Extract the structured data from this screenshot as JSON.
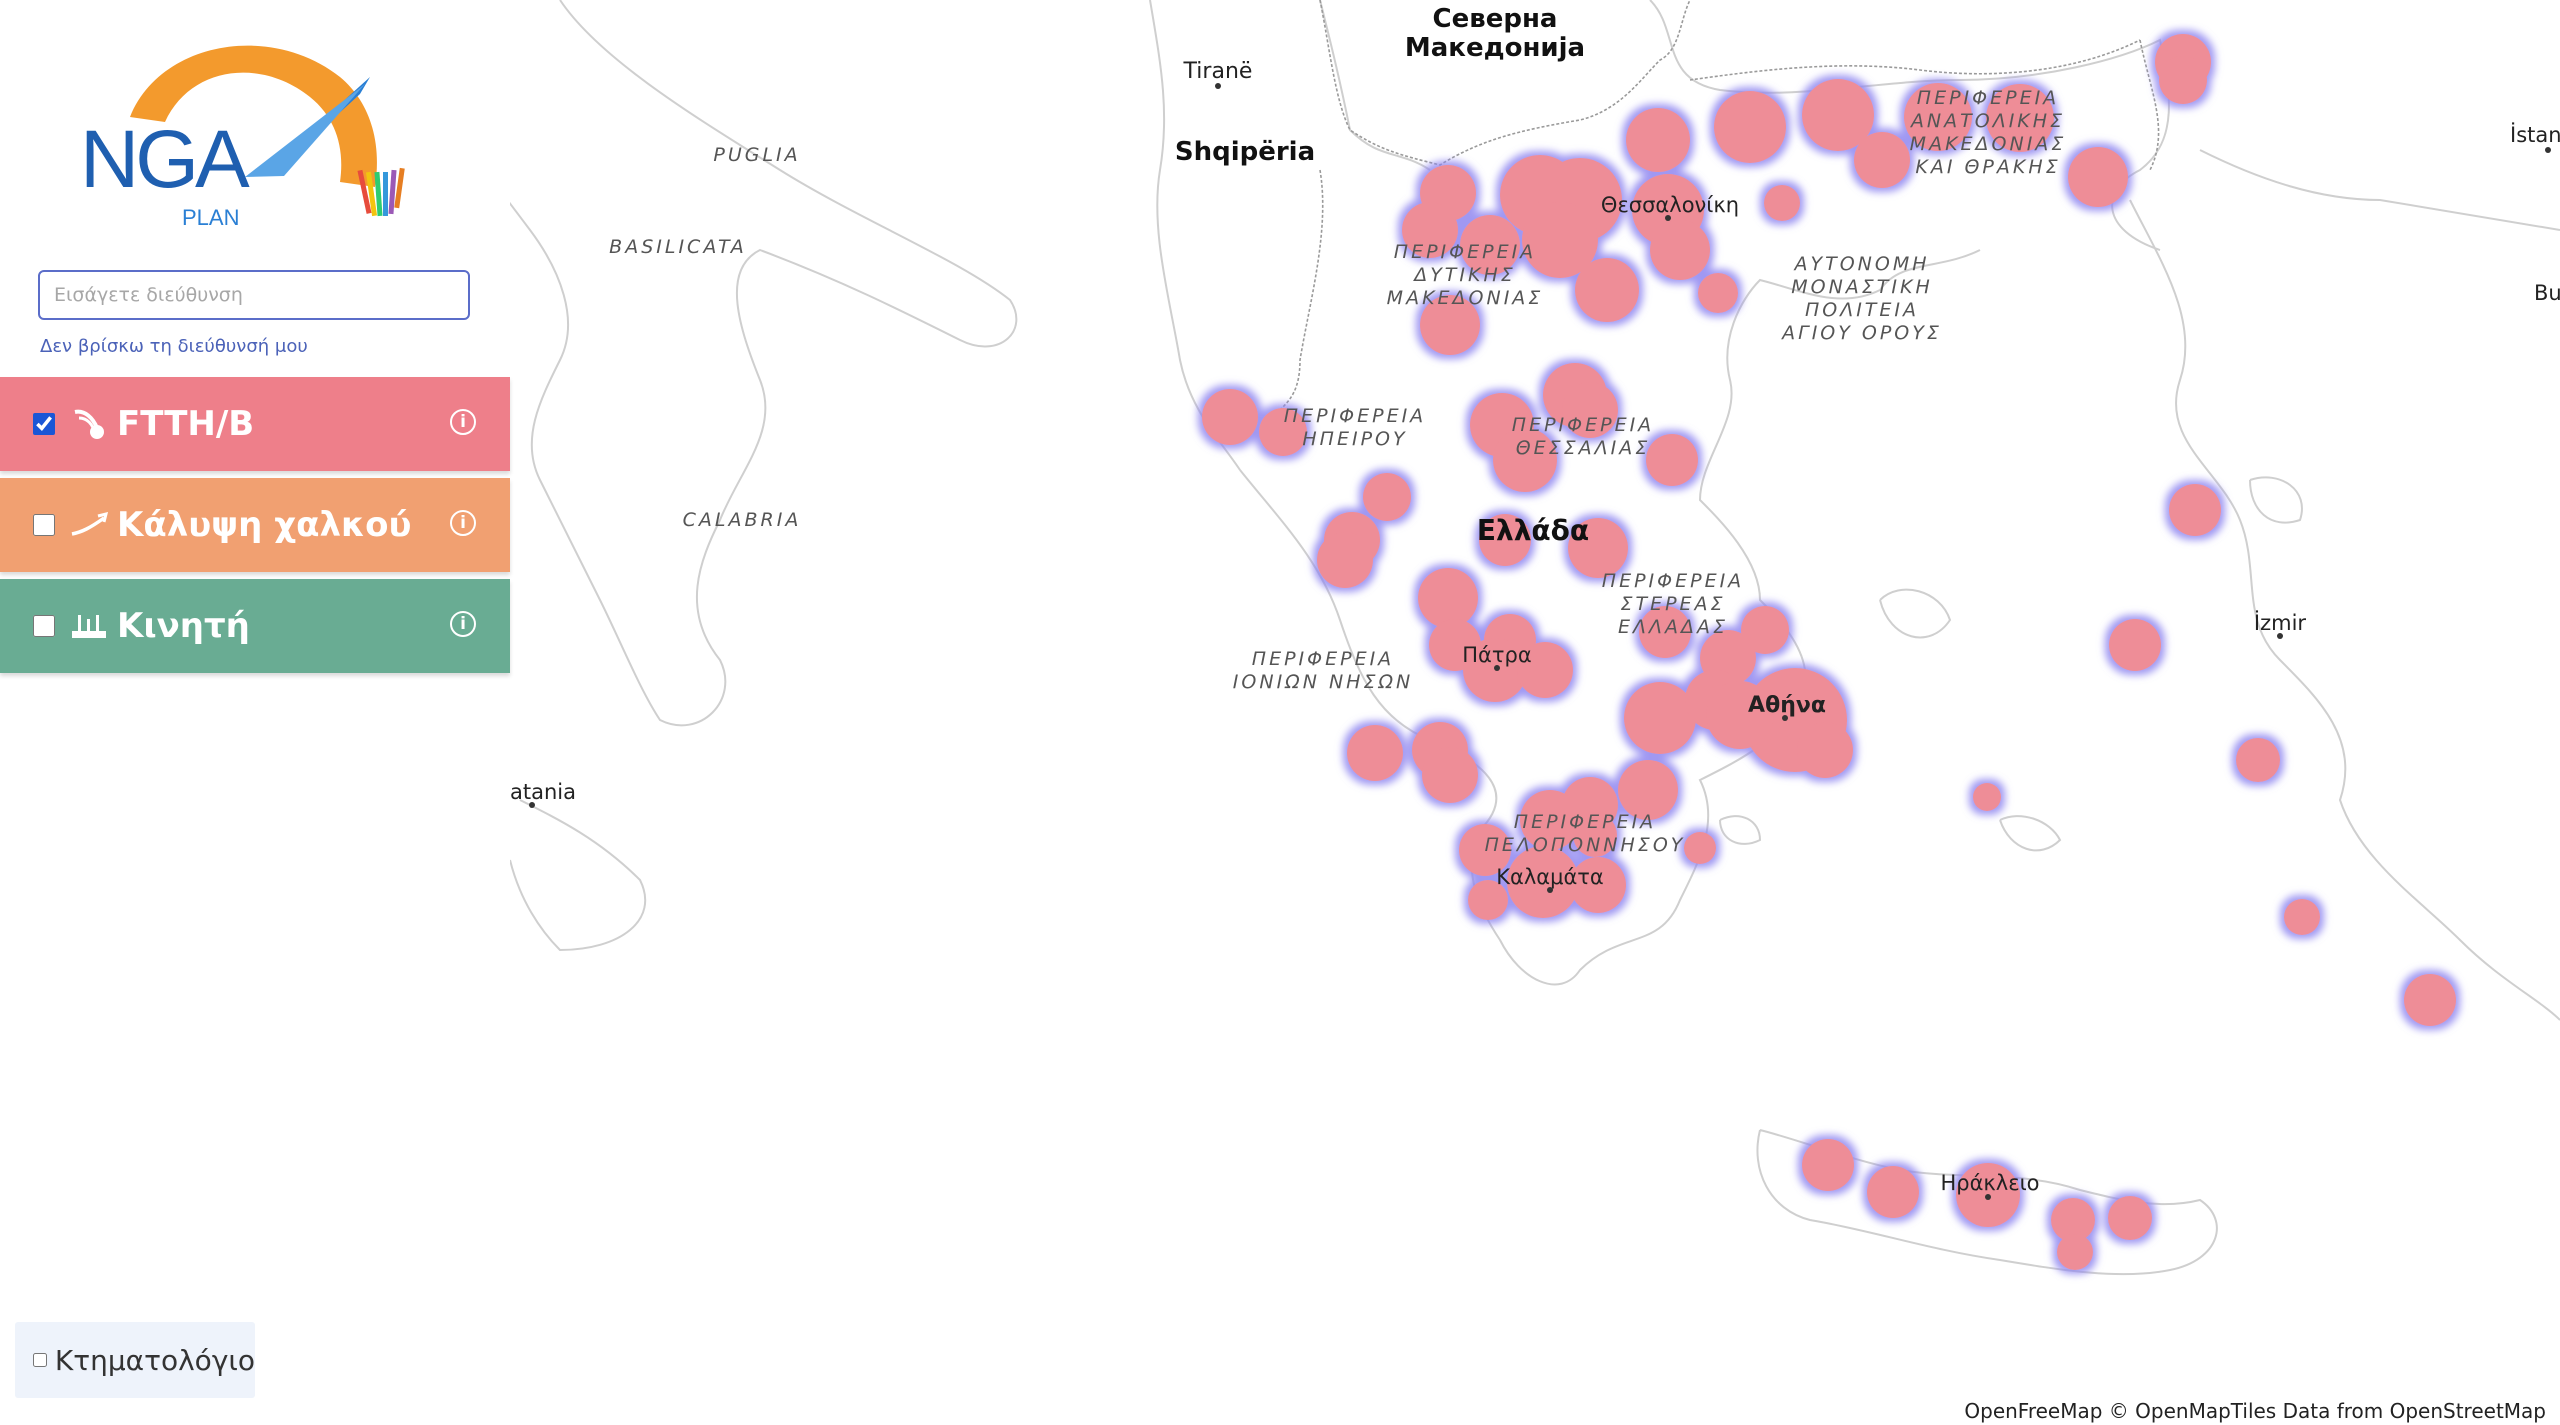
{
  "logo": {
    "text": "NGA",
    "sub": "PLAN",
    "colors": {
      "arc": "#f39a2d",
      "text": "#1f5fb0",
      "blade": "#2a7fd4"
    }
  },
  "search": {
    "placeholder": "Εισάγετε διεύθυνση",
    "value": "",
    "help_link": "Δεν βρίσκω τη διεύθυνσή μου"
  },
  "layers": [
    {
      "label": "FTTH/B",
      "checked": true,
      "color": "#ee7f8a",
      "icon": "fiber-optic-icon",
      "info_icon": "info-icon"
    },
    {
      "label": "Κάλυψη χαλκού",
      "checked": false,
      "color": "#f1a071",
      "icon": "copper-cable-icon",
      "info_icon": "info-icon"
    },
    {
      "label": "Κινητή",
      "checked": false,
      "color": "#69ac93",
      "icon": "antenna-icon",
      "info_icon": "info-icon"
    }
  ],
  "cadastre": {
    "label": "Κτηματολόγιο",
    "checked": false
  },
  "attribution": "OpenFreeMap © OpenMapTiles Data from OpenStreetMap",
  "map": {
    "coverage_color": "#ee8d97",
    "coverage_halo": "#8f86f0",
    "labels": {
      "countries": [
        "Северна",
        "Македонија",
        "Shqipëria",
        "Ελλάδα"
      ],
      "cities": [
        "Tiranë",
        "Θεσσαλονίκη",
        "Πάτρα",
        "Αθήνα",
        "Καλαμάτα",
        "Ηράκλειο",
        "İzmir",
        "İstanb",
        "Bu",
        "atania"
      ],
      "regions": {
        "puglia": "PUGLIA",
        "basilicata": "BASILICATA",
        "calabria": "CALABRIA",
        "east_mac": [
          "ΠΕΡΙΦΕΡΕΙΑ",
          "ΑΝΑΤΟΛΙΚΗΣ",
          "ΜΑΚΕΔΟΝΙΑΣ",
          "ΚΑΙ ΘΡΑΚΗΣ"
        ],
        "west_mac": [
          "ΠΕΡΙΦΕΡΕΙΑ",
          "ΔΥΤΙΚΗΣ",
          "ΜΑΚΕΔΟΝΙΑΣ"
        ],
        "athos": [
          "ΑΥΤΟΝΟΜΗ",
          "ΜΟΝΑΣΤΙΚΗ",
          "ΠΟΛΙΤΕΙΑ",
          "ΑΓΙΟΥ ΟΡΟΥΣ"
        ],
        "epirus": [
          "ΠΕΡΙΦΕΡΕΙΑ",
          "ΗΠΕΙΡΟΥ"
        ],
        "thessaly": [
          "ΠΕΡΙΦΕΡΕΙΑ",
          "ΘΕΣΣΑΛΙΑΣ"
        ],
        "sterea": [
          "ΠΕΡΙΦΕΡΕΙΑ",
          "ΣΤΕΡΕΑΣ",
          "ΕΛΛΑΔΑΣ"
        ],
        "ionian": [
          "ΠΕΡΙΦΕΡΕΙΑ",
          "ΙΟΝΙΩΝ ΝΗΣΩΝ"
        ],
        "pelop": [
          "ΠΕΡΙΦΕΡΕΙΑ",
          "ΠΕΛΟΠΟΝΝΗΣΟΥ"
        ]
      }
    }
  }
}
